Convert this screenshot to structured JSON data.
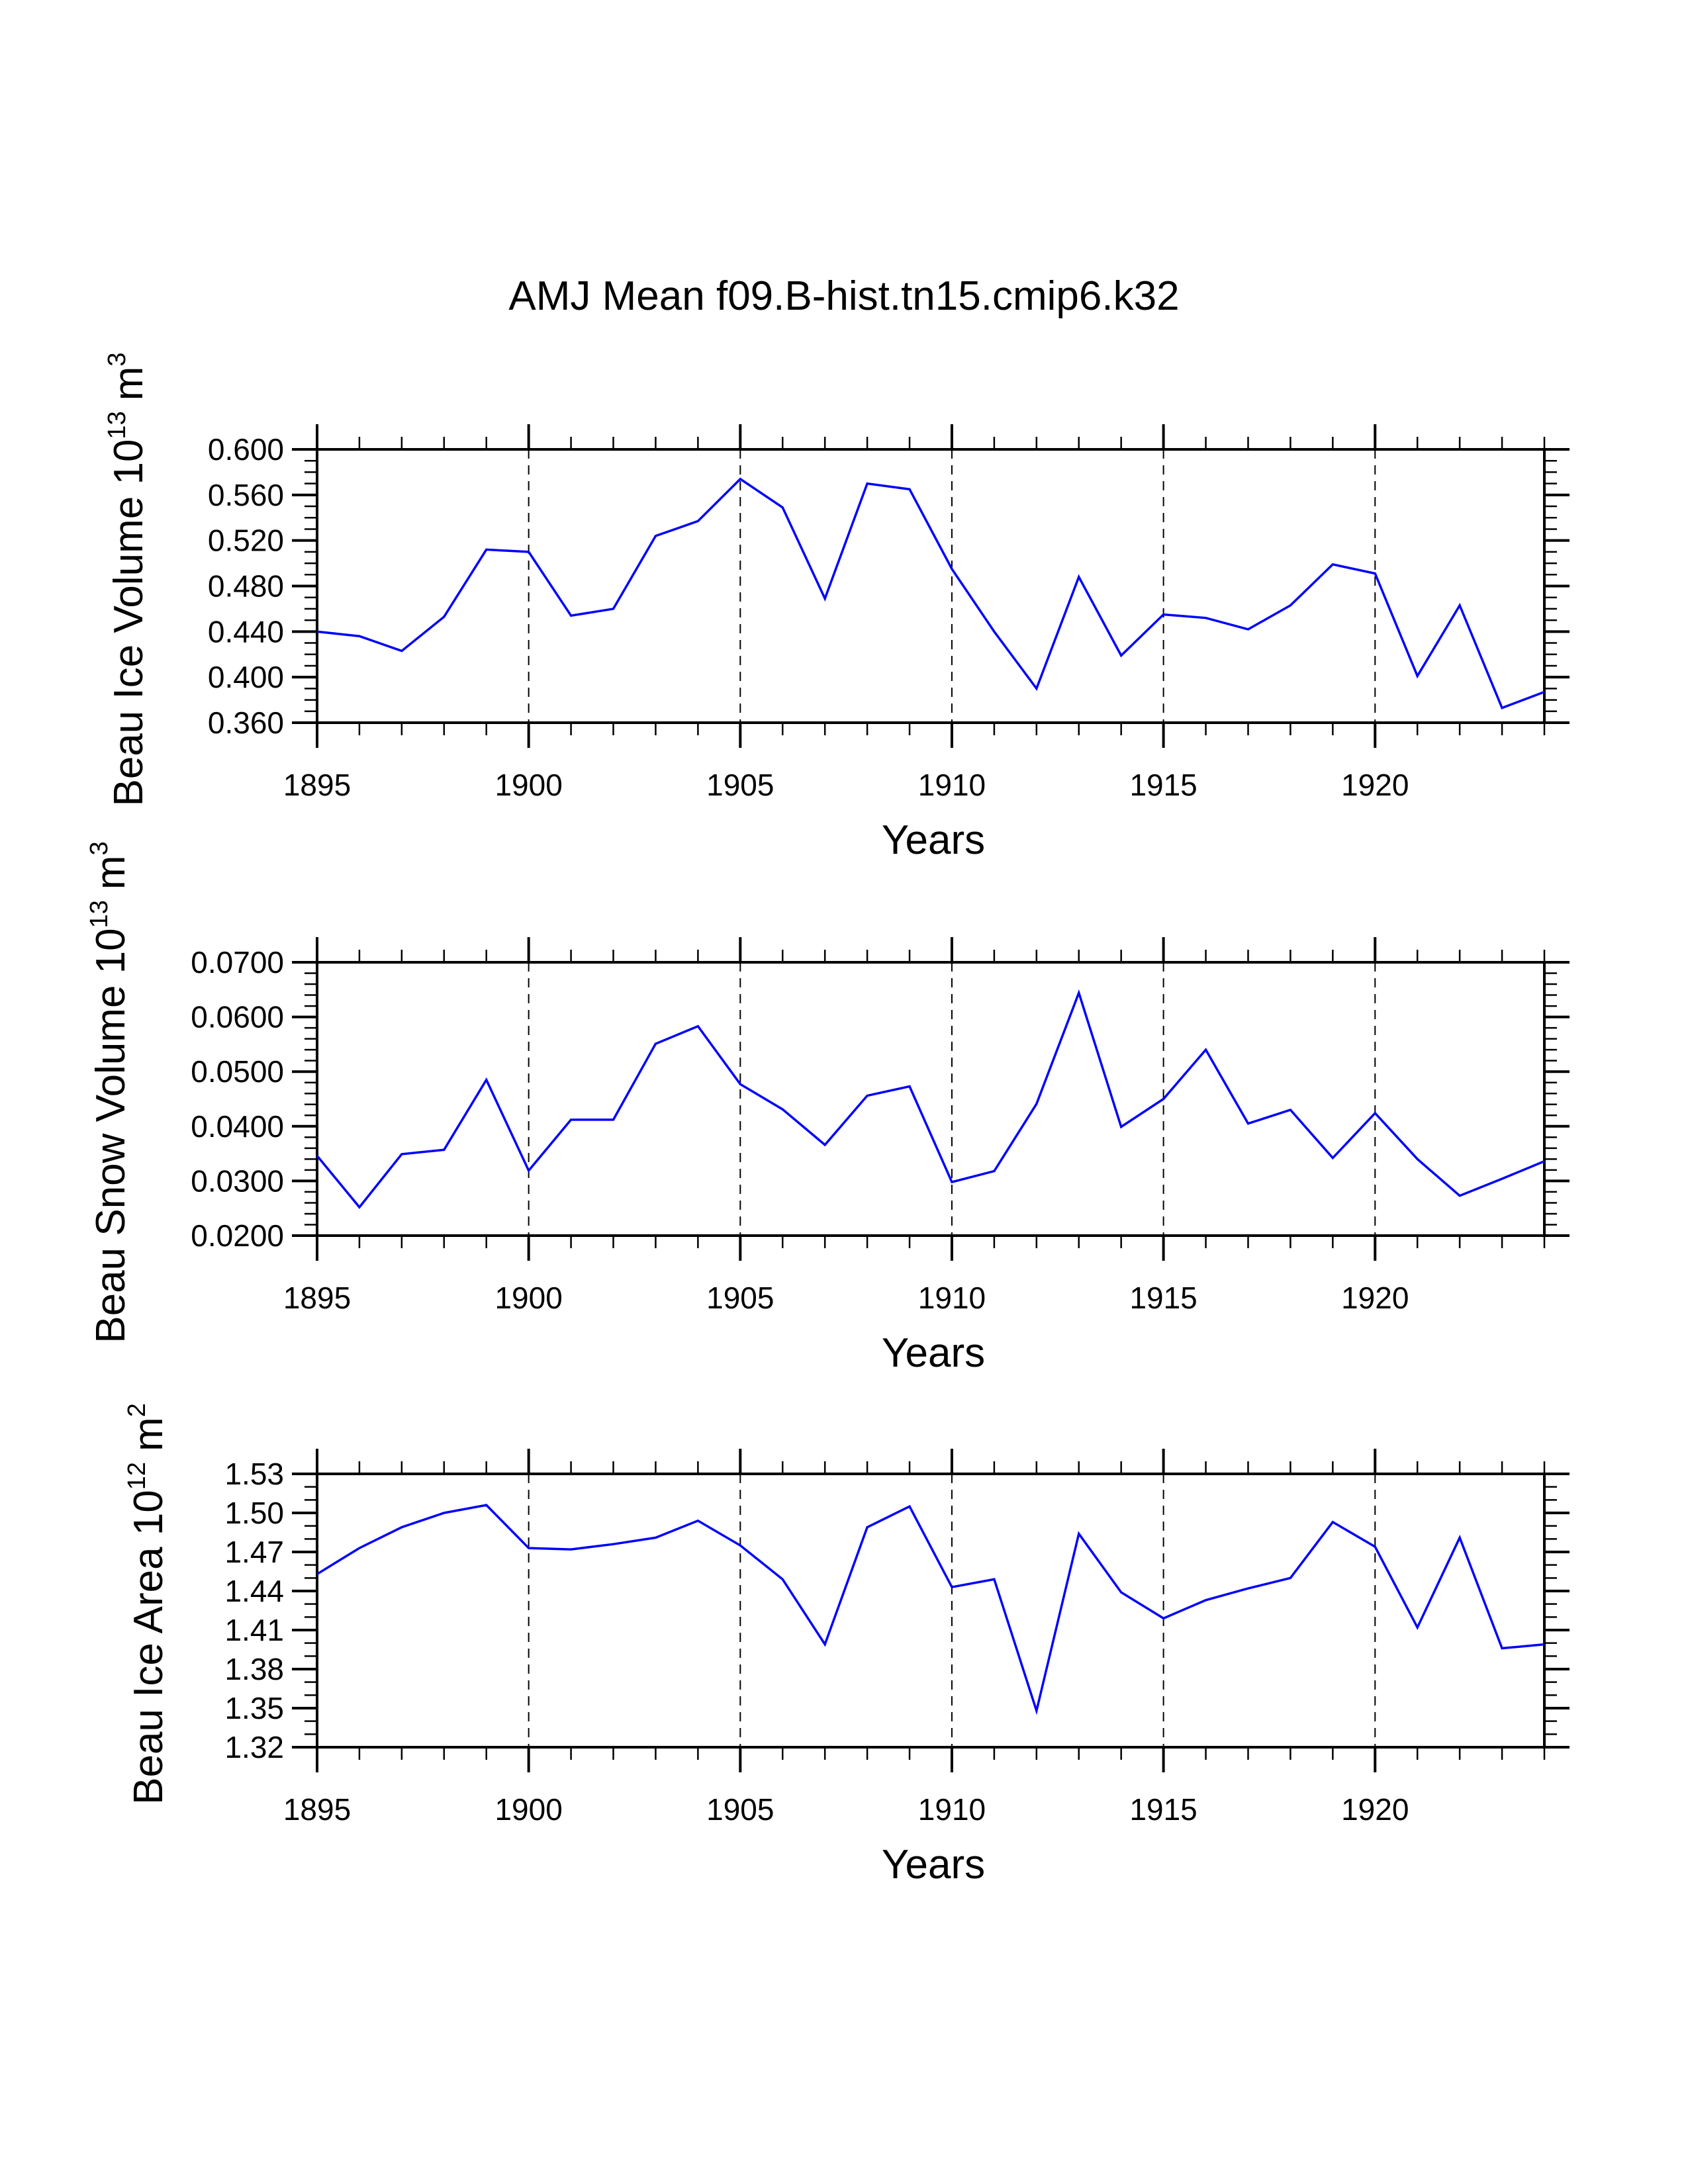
{
  "title": "AMJ Mean f09.B-hist.tn15.cmip6.k32",
  "line_color": "#0000ff",
  "chart_data": [
    {
      "type": "line",
      "xlabel": "Years",
      "ylabel": {
        "text": "Beau Ice Volume 10",
        "exp": "13",
        "unit": "m",
        "unit_exp": "3"
      },
      "xlim": [
        1895,
        1924
      ],
      "ylim": [
        0.36,
        0.6
      ],
      "x_ticks": [
        "1895",
        "1900",
        "1905",
        "1910",
        "1915",
        "1920"
      ],
      "y_ticks": [
        "0.360",
        "0.400",
        "0.440",
        "0.480",
        "0.520",
        "0.560",
        "0.600"
      ],
      "y_major_step": 0.04,
      "y_minor_per_major": 4,
      "grid": "dashed vertical at major x ticks",
      "x": [
        1895,
        1896,
        1897,
        1898,
        1899,
        1900,
        1901,
        1902,
        1903,
        1904,
        1905,
        1906,
        1907,
        1908,
        1909,
        1910,
        1911,
        1912,
        1913,
        1914,
        1915,
        1916,
        1917,
        1918,
        1919,
        1920,
        1921,
        1922,
        1923,
        1924
      ],
      "values": [
        0.44,
        0.436,
        0.423,
        0.453,
        0.512,
        0.51,
        0.454,
        0.46,
        0.524,
        0.537,
        0.574,
        0.549,
        0.469,
        0.57,
        0.565,
        0.495,
        0.44,
        0.39,
        0.488,
        0.419,
        0.455,
        0.452,
        0.442,
        0.463,
        0.499,
        0.491,
        0.401,
        0.463,
        0.373,
        0.387
      ]
    },
    {
      "type": "line",
      "xlabel": "Years",
      "ylabel": {
        "text": "Beau Snow Volume 10",
        "exp": "13",
        "unit": "m",
        "unit_exp": "3"
      },
      "xlim": [
        1895,
        1924
      ],
      "ylim": [
        0.02,
        0.07
      ],
      "x_ticks": [
        "1895",
        "1900",
        "1905",
        "1910",
        "1915",
        "1920"
      ],
      "y_ticks": [
        "0.0200",
        "0.0300",
        "0.0400",
        "0.0500",
        "0.0600",
        "0.0700"
      ],
      "y_major_step": 0.01,
      "y_minor_per_major": 5,
      "grid": "dashed vertical at major x ticks",
      "x": [
        1895,
        1896,
        1897,
        1898,
        1899,
        1900,
        1901,
        1902,
        1903,
        1904,
        1905,
        1906,
        1907,
        1908,
        1909,
        1910,
        1911,
        1912,
        1913,
        1914,
        1915,
        1916,
        1917,
        1918,
        1919,
        1920,
        1921,
        1922,
        1923,
        1924
      ],
      "values": [
        0.0346,
        0.0252,
        0.0349,
        0.0357,
        0.0485,
        0.0319,
        0.0412,
        0.0412,
        0.0551,
        0.0583,
        0.0477,
        0.0431,
        0.0366,
        0.0456,
        0.0473,
        0.0298,
        0.0318,
        0.0441,
        0.0644,
        0.0399,
        0.045,
        0.054,
        0.0405,
        0.043,
        0.0342,
        0.0424,
        0.034,
        0.0273,
        0.0304,
        0.0336
      ]
    },
    {
      "type": "line",
      "xlabel": "Years",
      "ylabel": {
        "text": "Beau Ice Area 10",
        "exp": "12",
        "unit": "m",
        "unit_exp": "2"
      },
      "xlim": [
        1895,
        1924
      ],
      "ylim": [
        1.32,
        1.53
      ],
      "x_ticks": [
        "1895",
        "1900",
        "1905",
        "1910",
        "1915",
        "1920"
      ],
      "y_ticks": [
        "1.32",
        "1.35",
        "1.38",
        "1.41",
        "1.44",
        "1.47",
        "1.50",
        "1.53"
      ],
      "y_major_step": 0.03,
      "y_minor_per_major": 3,
      "grid": "dashed vertical at major x ticks",
      "x": [
        1895,
        1896,
        1897,
        1898,
        1899,
        1900,
        1901,
        1902,
        1903,
        1904,
        1905,
        1906,
        1907,
        1908,
        1909,
        1910,
        1911,
        1912,
        1913,
        1914,
        1915,
        1916,
        1917,
        1918,
        1919,
        1920,
        1921,
        1922,
        1923,
        1924
      ],
      "values": [
        1.453,
        1.473,
        1.489,
        1.5,
        1.506,
        1.473,
        1.472,
        1.476,
        1.481,
        1.494,
        1.475,
        1.449,
        1.399,
        1.489,
        1.505,
        1.443,
        1.449,
        1.348,
        1.484,
        1.439,
        1.419,
        1.433,
        1.442,
        1.45,
        1.493,
        1.474,
        1.412,
        1.481,
        1.396,
        1.399
      ]
    }
  ]
}
